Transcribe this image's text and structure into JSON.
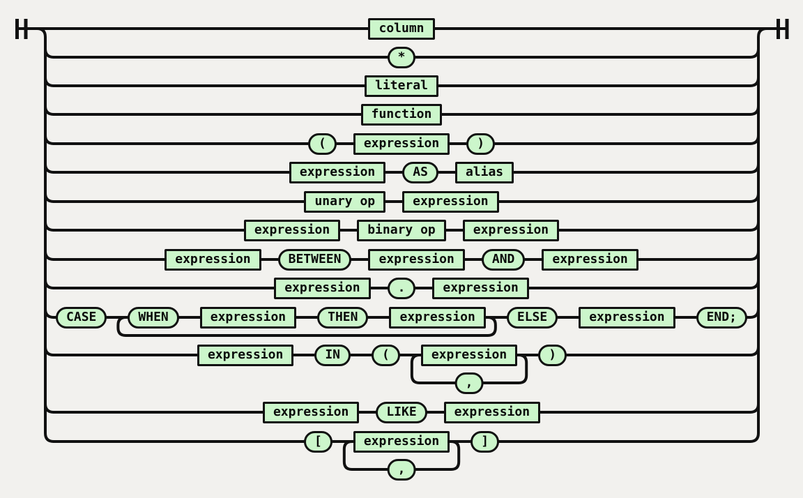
{
  "diagram": {
    "kind": "railroad-syntax-diagram",
    "background": "#f2f1ee",
    "line_color": "#111111",
    "node_fill": "#ccf6cb",
    "text_color": "#0a0a0a",
    "terminals": {
      "start": "start-terminal-icon",
      "end": "end-terminal-icon"
    },
    "rows": [
      {
        "nodes": [
          {
            "type": "rect",
            "label": "column"
          }
        ]
      },
      {
        "nodes": [
          {
            "type": "pill",
            "label": "*"
          }
        ]
      },
      {
        "nodes": [
          {
            "type": "rect",
            "label": "literal"
          }
        ]
      },
      {
        "nodes": [
          {
            "type": "rect",
            "label": "function"
          }
        ]
      },
      {
        "nodes": [
          {
            "type": "pill",
            "label": "("
          },
          {
            "type": "rect",
            "label": "expression"
          },
          {
            "type": "pill",
            "label": ")"
          }
        ]
      },
      {
        "nodes": [
          {
            "type": "rect",
            "label": "expression"
          },
          {
            "type": "pill",
            "label": "AS"
          },
          {
            "type": "rect",
            "label": "alias"
          }
        ]
      },
      {
        "nodes": [
          {
            "type": "rect",
            "label": "unary op"
          },
          {
            "type": "rect",
            "label": "expression"
          }
        ]
      },
      {
        "nodes": [
          {
            "type": "rect",
            "label": "expression"
          },
          {
            "type": "rect",
            "label": "binary op"
          },
          {
            "type": "rect",
            "label": "expression"
          }
        ]
      },
      {
        "nodes": [
          {
            "type": "rect",
            "label": "expression"
          },
          {
            "type": "pill",
            "label": "BETWEEN"
          },
          {
            "type": "rect",
            "label": "expression"
          },
          {
            "type": "pill",
            "label": "AND"
          },
          {
            "type": "rect",
            "label": "expression"
          }
        ]
      },
      {
        "nodes": [
          {
            "type": "rect",
            "label": "expression"
          },
          {
            "type": "pill",
            "label": "."
          },
          {
            "type": "rect",
            "label": "expression"
          }
        ]
      },
      {
        "nodes": [
          {
            "type": "pill",
            "label": "CASE"
          },
          {
            "type": "pill",
            "label": "WHEN"
          },
          {
            "type": "rect",
            "label": "expression"
          },
          {
            "type": "pill",
            "label": "THEN"
          },
          {
            "type": "rect",
            "label": "expression"
          },
          {
            "type": "pill",
            "label": "ELSE"
          },
          {
            "type": "rect",
            "label": "expression"
          },
          {
            "type": "pill",
            "label": "END;"
          }
        ],
        "loop": {
          "kind": "repeat-back",
          "from": 1,
          "to": 4
        }
      },
      {
        "nodes": [
          {
            "type": "rect",
            "label": "expression"
          },
          {
            "type": "pill",
            "label": "IN"
          },
          {
            "type": "pill",
            "label": "("
          },
          {
            "type": "rect",
            "label": "expression"
          },
          {
            "type": "pill",
            "label": ")"
          }
        ],
        "loop": {
          "kind": "comma-under",
          "node": 3,
          "label": ","
        }
      },
      {
        "nodes": [
          {
            "type": "rect",
            "label": "expression"
          },
          {
            "type": "pill",
            "label": "LIKE"
          },
          {
            "type": "rect",
            "label": "expression"
          }
        ]
      },
      {
        "nodes": [
          {
            "type": "pill",
            "label": "["
          },
          {
            "type": "rect",
            "label": "expression"
          },
          {
            "type": "pill",
            "label": "]"
          }
        ],
        "loop": {
          "kind": "comma-under",
          "node": 1,
          "label": ","
        }
      }
    ]
  }
}
